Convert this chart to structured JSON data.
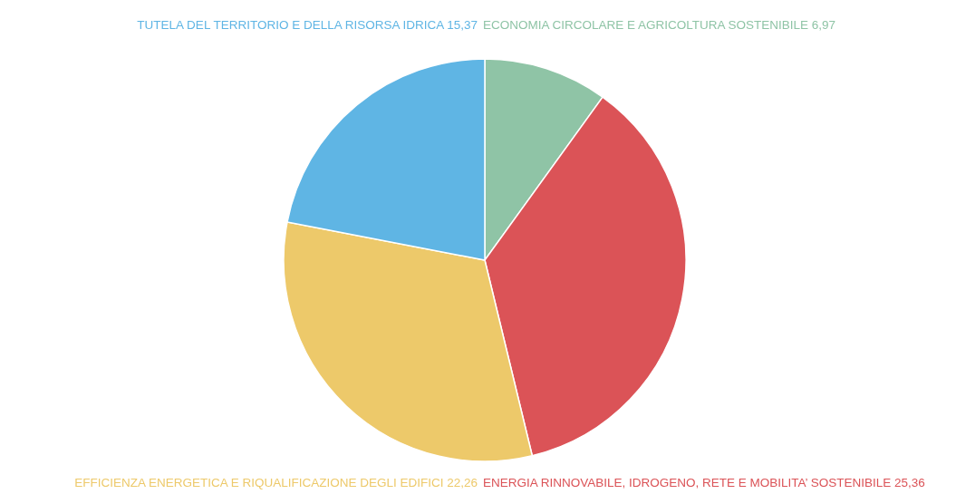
{
  "chart_data": {
    "type": "pie",
    "categories": [
      "ECONOMIA CIRCOLARE E AGRICOLTURA SOSTENIBILE",
      "ENERGIA RINNOVABILE, IDROGENO, RETE E MOBILITA’ SOSTENIBILE",
      "EFFICIENZA ENERGETICA E RIQUALIFICAZIONE DEGLI EDIFICI",
      "TUTELA DEL TERRITORIO E DELLA RISORSA IDRICA"
    ],
    "values": [
      6.97,
      25.36,
      22.26,
      15.37
    ],
    "value_labels": [
      "6,97",
      "25,36",
      "22,26",
      "15,37"
    ],
    "colors": [
      "#8fc4a6",
      "#db5357",
      "#edc96a",
      "#5fb5e4"
    ],
    "legend": false
  }
}
